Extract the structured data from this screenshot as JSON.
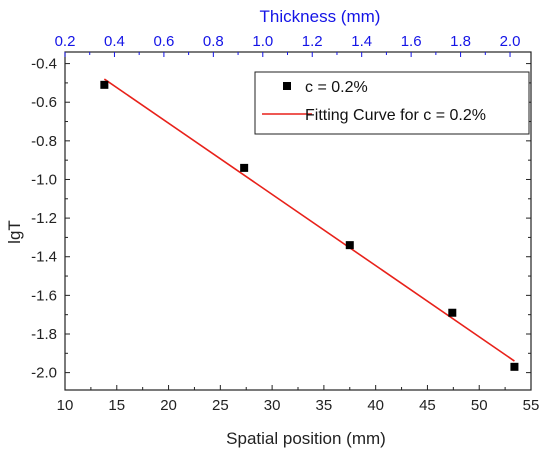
{
  "chart_data": {
    "type": "scatter",
    "xlabel": "Spatial position (mm)",
    "ylabel": "lgT",
    "x2label": "Thickness (mm)",
    "xlim": [
      10,
      55
    ],
    "ylim": [
      -2.09,
      -0.34
    ],
    "x2lim": [
      0.2,
      2.0
    ],
    "xticks": [
      10,
      15,
      20,
      25,
      30,
      35,
      40,
      45,
      50,
      55
    ],
    "xtick_labels": [
      "10",
      "15",
      "20",
      "25",
      "30",
      "35",
      "40",
      "45",
      "50",
      "55"
    ],
    "yticks": [
      -0.4,
      -0.6,
      -0.8,
      -1.0,
      -1.2,
      -1.4,
      -1.6,
      -1.8,
      -2.0
    ],
    "ytick_labels": [
      "-0.4",
      "-0.6",
      "-0.8",
      "-1.0",
      "-1.2",
      "-1.4",
      "-1.6",
      "-1.8",
      "-2.0"
    ],
    "x2ticks": [
      0.2,
      0.4,
      0.6,
      0.8,
      1.0,
      1.2,
      1.4,
      1.6,
      1.8,
      2.0
    ],
    "x2tick_labels": [
      "0.2",
      "0.4",
      "0.6",
      "0.8",
      "1.0",
      "1.2",
      "1.4",
      "1.6",
      "1.8",
      "2.0"
    ],
    "legend_position": "top-right",
    "grid": false,
    "series": [
      {
        "name": "c = 0.2%",
        "kind": "scatter",
        "marker": "square",
        "color": "#000000",
        "x": [
          13.8,
          27.3,
          37.5,
          47.4,
          53.4
        ],
        "y": [
          -0.51,
          -0.94,
          -1.34,
          -1.69,
          -1.97
        ]
      },
      {
        "name": "Fitting Curve for c = 0.2%",
        "kind": "line",
        "color": "#e8211a",
        "x": [
          13.8,
          53.4
        ],
        "y": [
          -0.48,
          -1.94
        ]
      }
    ]
  }
}
